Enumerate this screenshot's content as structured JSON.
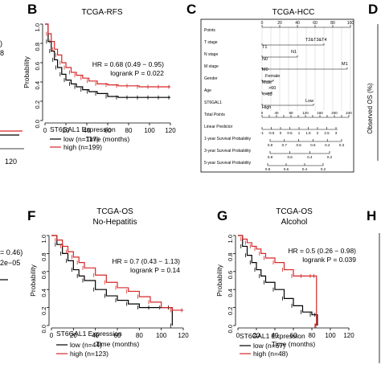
{
  "panels": {
    "A": {
      "hr": ")",
      "lr": "8",
      "xtick": "120"
    },
    "B": {
      "letter": "B",
      "title": "TCGA-RFS",
      "hr": "HR = 0.68 (0.49 − 0.95)",
      "logrank": "logrank P = 0.022",
      "legend_title": "ST6GAL1 Expression",
      "low": "low (n=117)",
      "high": "high (n=199)"
    },
    "C": {
      "letter": "C",
      "title": "TCGA-HCC"
    },
    "D": {
      "letter": "D",
      "ylabel": "Observed OS (%)"
    },
    "E": {
      "hr": "= 0.46)",
      "lr": "2e−05"
    },
    "F": {
      "letter": "F",
      "title": "TCGA-OS",
      "subtitle": "No-Hepatitis",
      "hr": "HR = 0.7 (0.43 − 1.13)",
      "logrank": "logrank P = 0.14",
      "legend_title": "ST6GAL1 Expression",
      "low": "low (n=44)",
      "high": "high (n=123)"
    },
    "G": {
      "letter": "G",
      "title": "TCGA-OS",
      "subtitle": "Alcohol",
      "hr": "HR = 0.5 (0.26 − 0.98)",
      "logrank": "logrank P = 0.039",
      "legend_title": "ST6GAL1 Expression",
      "low": "low (n=67)",
      "high": "high (n=48)"
    },
    "H": {
      "letter": "H"
    }
  },
  "nomogram": {
    "rows": [
      "Points",
      "T stage",
      "N stage",
      "M stage",
      "Gender",
      "Age",
      "ST6GAL1",
      "Total Points",
      "Linear Predictor",
      "1-year Survival Probability",
      "3-year Survival Probability",
      "5-year Survival Probability"
    ],
    "labels": {
      "t_left": "T1",
      "t_right": "T2&T3&T4",
      "n0": "N0",
      "n1": "N1",
      "m0": "M0",
      "m1": "M1",
      "male": "Male",
      "female": "Female",
      "age_hi": ">60",
      "age_lo": "<=60",
      "high": "High",
      "low": "Low"
    }
  },
  "colors": {
    "low": "#000000",
    "high": "#d62728"
  },
  "chart_data": [
    {
      "type": "line",
      "title": "TCGA-RFS",
      "xlabel": "Time (months)",
      "ylabel": "Probability",
      "xlim": [
        0,
        120
      ],
      "ylim": [
        0,
        1
      ],
      "xticks": [
        0,
        20,
        40,
        60,
        80,
        100,
        120
      ],
      "yticks": [
        0.0,
        0.2,
        0.4,
        0.6,
        0.8,
        1.0
      ],
      "series": [
        {
          "name": "low (n=117)",
          "x": [
            0,
            3,
            6,
            9,
            12,
            16,
            20,
            25,
            30,
            36,
            42,
            50,
            60,
            70,
            80,
            90,
            100,
            110,
            120
          ],
          "y": [
            1.0,
            0.82,
            0.72,
            0.63,
            0.55,
            0.48,
            0.42,
            0.38,
            0.35,
            0.32,
            0.3,
            0.28,
            0.25,
            0.24,
            0.24,
            0.24,
            0.24,
            0.24,
            0.24
          ]
        },
        {
          "name": "high (n=199)",
          "x": [
            0,
            3,
            6,
            9,
            12,
            16,
            20,
            25,
            30,
            36,
            42,
            50,
            60,
            70,
            80,
            90,
            100,
            110,
            120
          ],
          "y": [
            1.0,
            0.9,
            0.82,
            0.74,
            0.68,
            0.6,
            0.55,
            0.5,
            0.47,
            0.44,
            0.41,
            0.38,
            0.37,
            0.36,
            0.36,
            0.35,
            0.35,
            0.35,
            0.35
          ]
        }
      ]
    },
    {
      "type": "line",
      "title": "TCGA-OS",
      "subtitle": "No-Hepatitis",
      "xlabel": "Time (months)",
      "ylabel": "Probability",
      "xlim": [
        0,
        120
      ],
      "ylim": [
        0,
        1
      ],
      "xticks": [
        0,
        20,
        40,
        60,
        80,
        100,
        120
      ],
      "yticks": [
        0.0,
        0.2,
        0.4,
        0.6,
        0.8,
        1.0
      ],
      "series": [
        {
          "name": "low (n=44)",
          "x": [
            0,
            5,
            10,
            15,
            20,
            25,
            30,
            40,
            50,
            60,
            70,
            80,
            90,
            100,
            108,
            110
          ],
          "y": [
            1.0,
            0.9,
            0.8,
            0.72,
            0.62,
            0.55,
            0.5,
            0.4,
            0.33,
            0.28,
            0.24,
            0.2,
            0.2,
            0.2,
            0.2,
            0.0
          ]
        },
        {
          "name": "high (n=123)",
          "x": [
            0,
            5,
            10,
            15,
            20,
            25,
            30,
            40,
            50,
            60,
            70,
            80,
            90,
            100,
            110,
            120
          ],
          "y": [
            1.0,
            0.95,
            0.88,
            0.82,
            0.76,
            0.7,
            0.64,
            0.56,
            0.48,
            0.42,
            0.38,
            0.32,
            0.26,
            0.2,
            0.17,
            0.17
          ]
        }
      ]
    },
    {
      "type": "line",
      "title": "TCGA-OS",
      "subtitle": "Alcohol",
      "xlabel": "Time (months)",
      "ylabel": "Probability",
      "xlim": [
        0,
        120
      ],
      "ylim": [
        0,
        1
      ],
      "xticks": [
        0,
        20,
        40,
        60,
        80,
        100,
        120
      ],
      "yticks": [
        0.0,
        0.2,
        0.4,
        0.6,
        0.8,
        1.0
      ],
      "series": [
        {
          "name": "low (n=67)",
          "x": [
            0,
            5,
            10,
            15,
            20,
            25,
            30,
            40,
            50,
            60,
            70,
            80,
            85,
            86
          ],
          "y": [
            1.0,
            0.88,
            0.78,
            0.7,
            0.62,
            0.55,
            0.48,
            0.4,
            0.3,
            0.22,
            0.15,
            0.12,
            0.12,
            0.0
          ]
        },
        {
          "name": "high (n=48)",
          "x": [
            0,
            5,
            10,
            15,
            20,
            25,
            30,
            40,
            50,
            60,
            70,
            80,
            84,
            85
          ],
          "y": [
            1.0,
            0.96,
            0.92,
            0.88,
            0.85,
            0.8,
            0.75,
            0.7,
            0.62,
            0.55,
            0.55,
            0.55,
            0.55,
            0.0
          ]
        }
      ]
    }
  ]
}
